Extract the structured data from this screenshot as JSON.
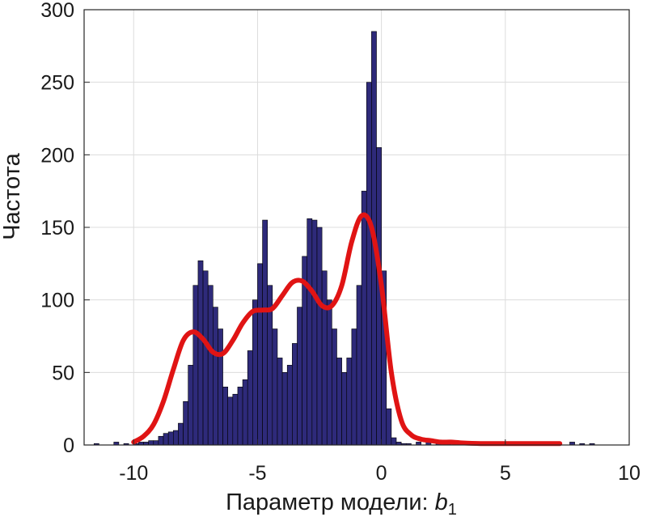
{
  "chart_data": {
    "type": "bar",
    "subtype": "histogram-with-density-fit",
    "xlabel": "Параметр модели: ",
    "xlabel_var": "b",
    "xlabel_sub": "1",
    "ylabel": "Частота",
    "xlim": [
      -12,
      10
    ],
    "ylim": [
      0,
      300
    ],
    "xticks": [
      -10,
      -5,
      0,
      5,
      10
    ],
    "yticks": [
      0,
      50,
      100,
      150,
      200,
      250,
      300
    ],
    "grid": true,
    "bin_width": 0.2,
    "bar_color": "#2e2a7a",
    "bar_edge_color": "#000000",
    "fit_color": "#e01414",
    "bins": [
      [
        -11.6,
        1
      ],
      [
        -10.8,
        2
      ],
      [
        -10.4,
        1
      ],
      [
        -10.0,
        1
      ],
      [
        -9.8,
        2
      ],
      [
        -9.6,
        2
      ],
      [
        -9.4,
        3
      ],
      [
        -9.2,
        3
      ],
      [
        -9.0,
        6
      ],
      [
        -8.8,
        8
      ],
      [
        -8.6,
        9
      ],
      [
        -8.4,
        10
      ],
      [
        -8.2,
        15
      ],
      [
        -8.0,
        30
      ],
      [
        -7.8,
        55
      ],
      [
        -7.6,
        110
      ],
      [
        -7.4,
        127
      ],
      [
        -7.2,
        120
      ],
      [
        -7.0,
        110
      ],
      [
        -6.8,
        95
      ],
      [
        -6.6,
        80
      ],
      [
        -6.4,
        40
      ],
      [
        -6.2,
        33
      ],
      [
        -6.0,
        35
      ],
      [
        -5.8,
        40
      ],
      [
        -5.6,
        45
      ],
      [
        -5.4,
        65
      ],
      [
        -5.2,
        100
      ],
      [
        -5.0,
        125
      ],
      [
        -4.8,
        155
      ],
      [
        -4.6,
        110
      ],
      [
        -4.4,
        80
      ],
      [
        -4.2,
        60
      ],
      [
        -4.0,
        50
      ],
      [
        -3.8,
        55
      ],
      [
        -3.6,
        70
      ],
      [
        -3.4,
        95
      ],
      [
        -3.2,
        130
      ],
      [
        -3.0,
        156
      ],
      [
        -2.8,
        155
      ],
      [
        -2.6,
        150
      ],
      [
        -2.4,
        120
      ],
      [
        -2.2,
        100
      ],
      [
        -2.0,
        80
      ],
      [
        -1.8,
        60
      ],
      [
        -1.6,
        50
      ],
      [
        -1.4,
        60
      ],
      [
        -1.2,
        80
      ],
      [
        -1.0,
        110
      ],
      [
        -0.8,
        175
      ],
      [
        -0.6,
        250
      ],
      [
        -0.4,
        285
      ],
      [
        -0.2,
        205
      ],
      [
        0.0,
        120
      ],
      [
        0.2,
        25
      ],
      [
        0.4,
        5
      ],
      [
        0.6,
        2
      ],
      [
        0.8,
        1
      ],
      [
        1.0,
        1
      ],
      [
        1.4,
        2
      ],
      [
        1.8,
        3
      ],
      [
        2.2,
        1
      ],
      [
        2.6,
        1
      ],
      [
        3.0,
        1
      ],
      [
        4.2,
        1
      ],
      [
        4.8,
        1
      ],
      [
        7.6,
        2
      ],
      [
        8.0,
        1
      ],
      [
        8.4,
        1
      ]
    ],
    "fit_curve": {
      "x": [
        -10.0,
        -9.6,
        -9.2,
        -8.8,
        -8.4,
        -8.0,
        -7.6,
        -7.2,
        -6.8,
        -6.4,
        -6.0,
        -5.6,
        -5.2,
        -4.8,
        -4.4,
        -4.0,
        -3.6,
        -3.2,
        -2.8,
        -2.4,
        -2.0,
        -1.6,
        -1.2,
        -0.8,
        -0.4,
        0.0,
        0.4,
        0.8,
        1.2,
        1.6,
        2.0,
        2.4,
        2.8,
        3.2,
        4.0,
        5.0,
        6.0,
        7.2
      ],
      "y": [
        2,
        6,
        14,
        30,
        52,
        72,
        78,
        73,
        64,
        63,
        72,
        84,
        92,
        93,
        94,
        103,
        112,
        113,
        106,
        96,
        96,
        110,
        140,
        158,
        150,
        110,
        50,
        17,
        7,
        4,
        3,
        2,
        2,
        1.5,
        1,
        1,
        1,
        1
      ]
    }
  }
}
